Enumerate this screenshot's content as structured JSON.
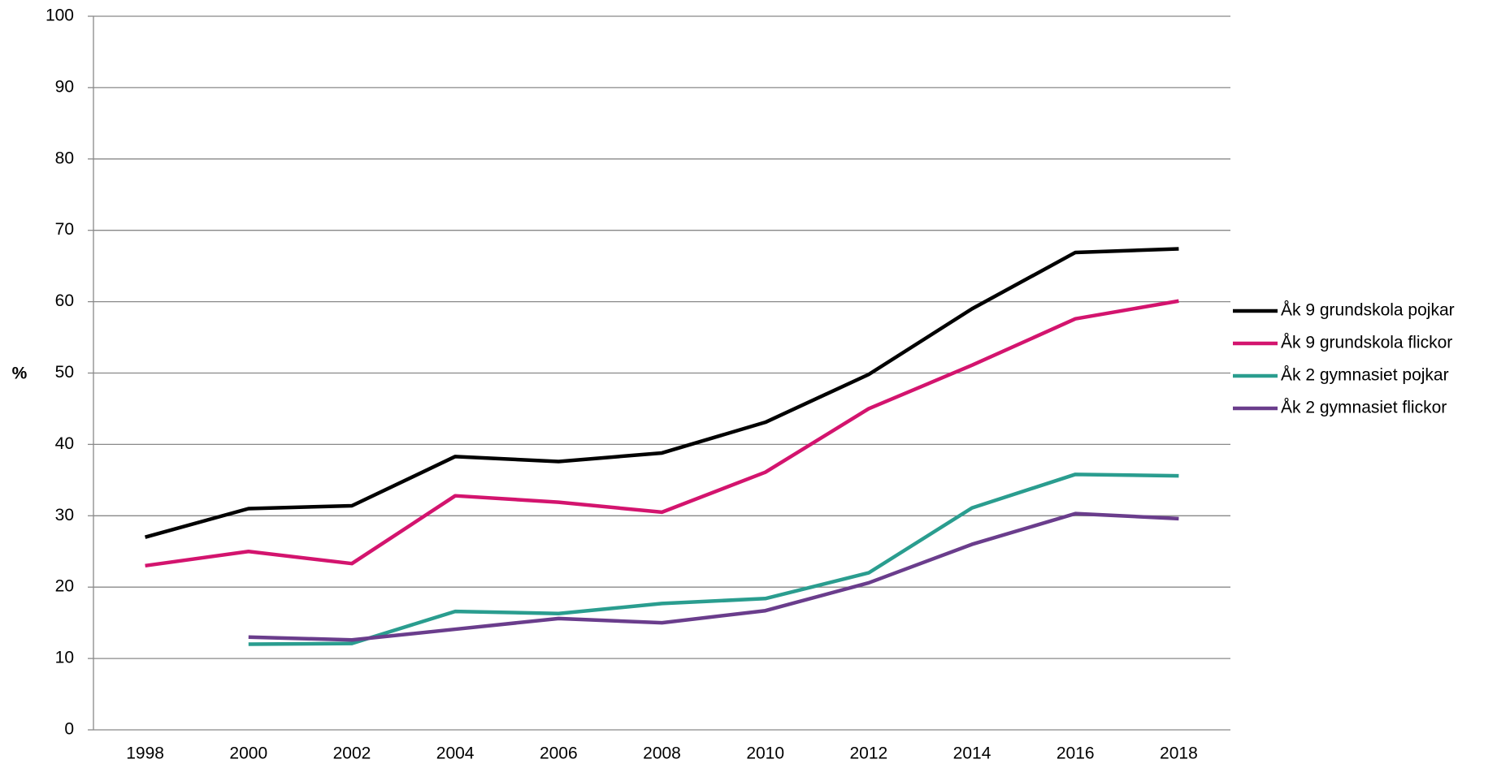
{
  "chart_data": {
    "type": "line",
    "y_label": "%",
    "categories": [
      "1998",
      "2000",
      "2002",
      "2004",
      "2006",
      "2008",
      "2010",
      "2012",
      "2014",
      "2016",
      "2018"
    ],
    "series": [
      {
        "name": "Åk 9 grundskola pojkar",
        "color": "#000000",
        "values": [
          27,
          31,
          31.4,
          38.3,
          37.6,
          38.8,
          43.1,
          49.8,
          59,
          66.9,
          67.4
        ]
      },
      {
        "name": "Åk 9 grundskola flickor",
        "color": "#d3146e",
        "values": [
          23,
          25,
          23.3,
          32.8,
          31.9,
          30.5,
          36.1,
          45,
          51.1,
          57.6,
          60.1
        ]
      },
      {
        "name": "Åk 2 gymnasiet pojkar",
        "color": "#2a9d8f",
        "values": [
          null,
          12,
          12.1,
          16.6,
          16.3,
          17.7,
          18.4,
          22,
          31.1,
          35.8,
          35.6
        ]
      },
      {
        "name": "Åk 2 gymnasiet flickor",
        "color": "#6a3d8c",
        "values": [
          null,
          13,
          12.6,
          14.1,
          15.6,
          15,
          16.7,
          20.6,
          26,
          30.3,
          29.6
        ]
      }
    ],
    "ylim": [
      0,
      100
    ],
    "yticks": [
      0,
      10,
      20,
      30,
      40,
      50,
      60,
      70,
      80,
      90,
      100
    ],
    "grid": true,
    "legend": "right"
  }
}
